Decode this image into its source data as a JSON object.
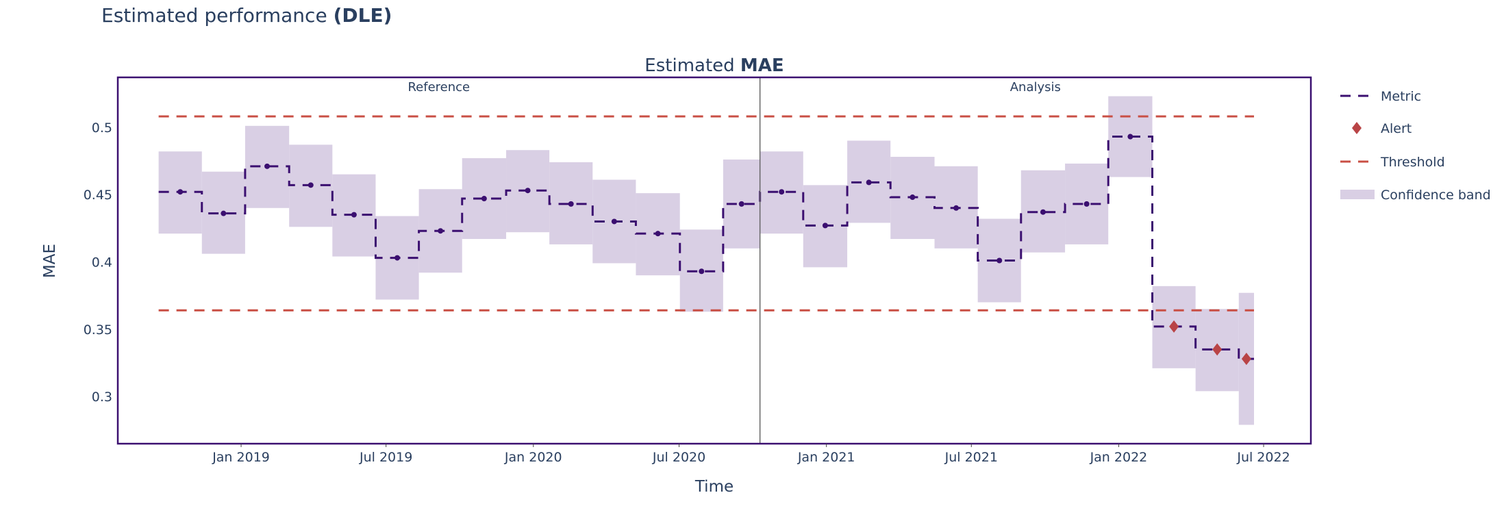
{
  "page": {
    "title_prefix": "Estimated performance ",
    "title_bold": "(DLE)"
  },
  "chart_data": {
    "type": "line",
    "title_prefix": "Estimated ",
    "title_bold": "MAE",
    "xlabel": "Time",
    "ylabel": "MAE",
    "xlim": [
      "2018-07-31",
      "2022-08-29"
    ],
    "ylim": [
      0.265,
      0.537
    ],
    "grid": false,
    "legend_position": "right",
    "period_labels": {
      "reference": "Reference",
      "analysis": "Analysis"
    },
    "period_split": "2020-10-10",
    "x_ticks": [
      {
        "date": "2019-01-01",
        "label": "Jan 2019"
      },
      {
        "date": "2019-07-01",
        "label": "Jul 2019"
      },
      {
        "date": "2020-01-01",
        "label": "Jan 2020"
      },
      {
        "date": "2020-07-01",
        "label": "Jul 2020"
      },
      {
        "date": "2021-01-01",
        "label": "Jan 2021"
      },
      {
        "date": "2021-07-01",
        "label": "Jul 2021"
      },
      {
        "date": "2022-01-01",
        "label": "Jan 2022"
      },
      {
        "date": "2022-07-01",
        "label": "Jul 2022"
      }
    ],
    "y_ticks": [
      {
        "value": 0.3,
        "label": "0.3"
      },
      {
        "value": 0.35,
        "label": "0.35"
      },
      {
        "value": 0.4,
        "label": "0.4"
      },
      {
        "value": 0.45,
        "label": "0.45"
      },
      {
        "value": 0.5,
        "label": "0.5"
      }
    ],
    "thresholds": {
      "upper": 0.508,
      "lower": 0.364
    },
    "legend": [
      {
        "key": "metric",
        "label": "Metric"
      },
      {
        "key": "alert",
        "label": "Alert"
      },
      {
        "key": "threshold",
        "label": "Threshold"
      },
      {
        "key": "band",
        "label": "Confidence band"
      }
    ],
    "colors": {
      "metric": "#3b0f70",
      "alert": "#b94446",
      "threshold": "#c94f44",
      "band": "#d9cfe4",
      "frame": "#3b0f70",
      "divider": "#666666"
    },
    "chunks": [
      {
        "period": "reference",
        "start": "2018-09-20",
        "end": "2018-11-13",
        "value": 0.452,
        "lower": 0.421,
        "upper": 0.482,
        "alert": false
      },
      {
        "period": "reference",
        "start": "2018-11-13",
        "end": "2019-01-06",
        "value": 0.436,
        "lower": 0.406,
        "upper": 0.467,
        "alert": false
      },
      {
        "period": "reference",
        "start": "2019-01-06",
        "end": "2019-03-02",
        "value": 0.471,
        "lower": 0.44,
        "upper": 0.501,
        "alert": false
      },
      {
        "period": "reference",
        "start": "2019-03-02",
        "end": "2019-04-25",
        "value": 0.457,
        "lower": 0.426,
        "upper": 0.487,
        "alert": false
      },
      {
        "period": "reference",
        "start": "2019-04-25",
        "end": "2019-06-18",
        "value": 0.435,
        "lower": 0.404,
        "upper": 0.465,
        "alert": false
      },
      {
        "period": "reference",
        "start": "2019-06-18",
        "end": "2019-08-11",
        "value": 0.403,
        "lower": 0.372,
        "upper": 0.434,
        "alert": false
      },
      {
        "period": "reference",
        "start": "2019-08-11",
        "end": "2019-10-04",
        "value": 0.423,
        "lower": 0.392,
        "upper": 0.454,
        "alert": false
      },
      {
        "period": "reference",
        "start": "2019-10-04",
        "end": "2019-11-28",
        "value": 0.447,
        "lower": 0.417,
        "upper": 0.477,
        "alert": false
      },
      {
        "period": "reference",
        "start": "2019-11-28",
        "end": "2020-01-21",
        "value": 0.453,
        "lower": 0.422,
        "upper": 0.483,
        "alert": false
      },
      {
        "period": "reference",
        "start": "2020-01-21",
        "end": "2020-03-15",
        "value": 0.443,
        "lower": 0.413,
        "upper": 0.474,
        "alert": false
      },
      {
        "period": "reference",
        "start": "2020-03-15",
        "end": "2020-05-08",
        "value": 0.43,
        "lower": 0.399,
        "upper": 0.461,
        "alert": false
      },
      {
        "period": "reference",
        "start": "2020-05-08",
        "end": "2020-07-02",
        "value": 0.421,
        "lower": 0.39,
        "upper": 0.451,
        "alert": false
      },
      {
        "period": "reference",
        "start": "2020-07-02",
        "end": "2020-08-25",
        "value": 0.393,
        "lower": 0.363,
        "upper": 0.424,
        "alert": false
      },
      {
        "period": "reference",
        "start": "2020-08-25",
        "end": "2020-10-10",
        "value": 0.443,
        "lower": 0.41,
        "upper": 0.476,
        "alert": false
      },
      {
        "period": "analysis",
        "start": "2020-10-10",
        "end": "2020-12-03",
        "value": 0.452,
        "lower": 0.421,
        "upper": 0.482,
        "alert": false
      },
      {
        "period": "analysis",
        "start": "2020-12-03",
        "end": "2021-01-27",
        "value": 0.427,
        "lower": 0.396,
        "upper": 0.457,
        "alert": false
      },
      {
        "period": "analysis",
        "start": "2021-01-27",
        "end": "2021-03-22",
        "value": 0.459,
        "lower": 0.429,
        "upper": 0.49,
        "alert": false
      },
      {
        "period": "analysis",
        "start": "2021-03-22",
        "end": "2021-05-16",
        "value": 0.448,
        "lower": 0.417,
        "upper": 0.478,
        "alert": false
      },
      {
        "period": "analysis",
        "start": "2021-05-16",
        "end": "2021-07-09",
        "value": 0.44,
        "lower": 0.41,
        "upper": 0.471,
        "alert": false
      },
      {
        "period": "analysis",
        "start": "2021-07-09",
        "end": "2021-09-01",
        "value": 0.401,
        "lower": 0.37,
        "upper": 0.432,
        "alert": false
      },
      {
        "period": "analysis",
        "start": "2021-09-01",
        "end": "2021-10-26",
        "value": 0.437,
        "lower": 0.407,
        "upper": 0.468,
        "alert": false
      },
      {
        "period": "analysis",
        "start": "2021-10-26",
        "end": "2021-12-19",
        "value": 0.443,
        "lower": 0.413,
        "upper": 0.473,
        "alert": false
      },
      {
        "period": "analysis",
        "start": "2021-12-19",
        "end": "2022-02-12",
        "value": 0.493,
        "lower": 0.463,
        "upper": 0.523,
        "alert": false
      },
      {
        "period": "analysis",
        "start": "2022-02-12",
        "end": "2022-04-07",
        "value": 0.352,
        "lower": 0.321,
        "upper": 0.382,
        "alert": true
      },
      {
        "period": "analysis",
        "start": "2022-04-07",
        "end": "2022-05-31",
        "value": 0.335,
        "lower": 0.304,
        "upper": 0.365,
        "alert": true
      },
      {
        "period": "analysis",
        "start": "2022-05-31",
        "end": "2022-06-19",
        "value": 0.328,
        "lower": 0.279,
        "upper": 0.377,
        "alert": true
      }
    ]
  }
}
